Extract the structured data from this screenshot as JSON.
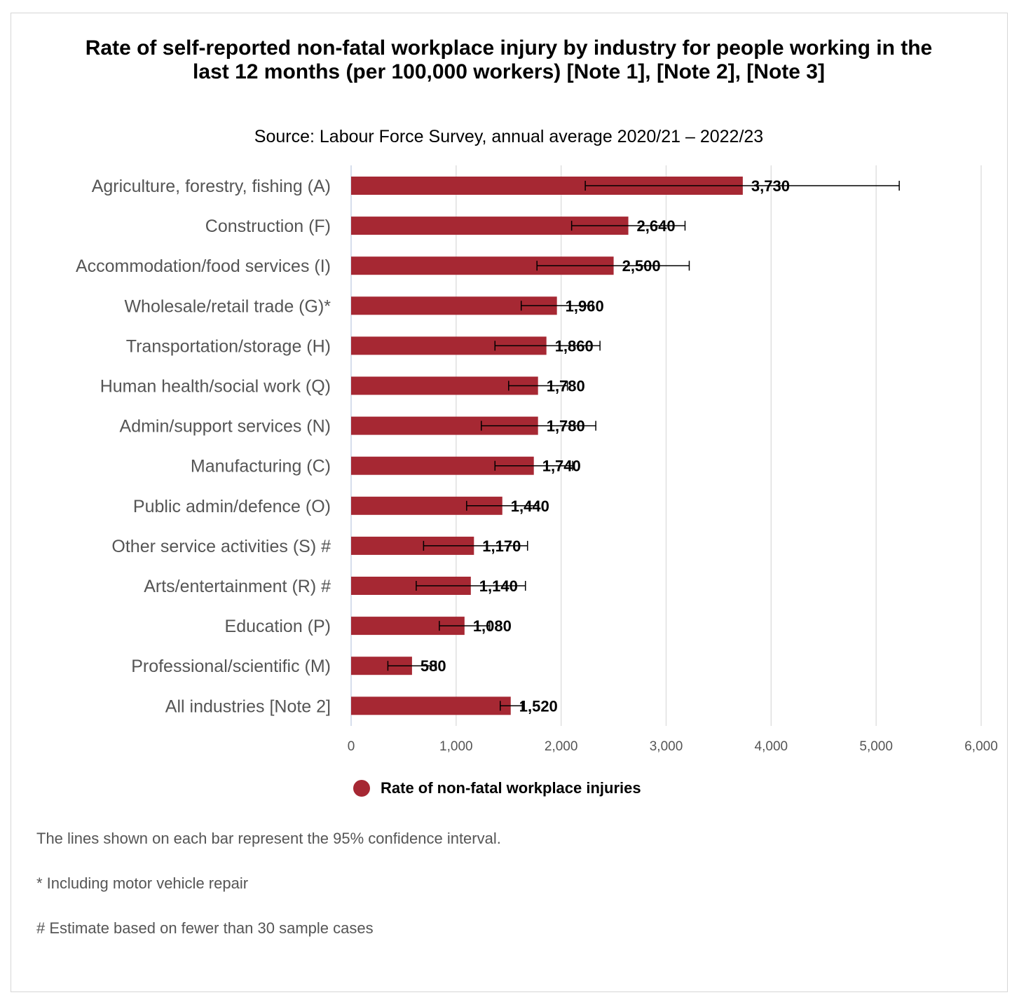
{
  "chart_data": {
    "type": "bar",
    "orientation": "horizontal",
    "title": "Rate of self-reported non-fatal workplace injury by industry for people working in the last 12 months (per 100,000 workers) [Note 1], [Note 2], [Note 3]",
    "subtitle": "Source: Labour Force Survey, annual average 2020/21 – 2022/23",
    "categories": [
      "Agriculture, forestry, fishing (A)",
      "Construction (F)",
      "Accommodation/food services (I)",
      "Wholesale/retail trade (G)*",
      "Transportation/storage (H)",
      "Human health/social work (Q)",
      "Admin/support services (N)",
      "Manufacturing (C)",
      "Public admin/defence (O)",
      "Other service activities (S) #",
      "Arts/entertainment (R) #",
      "Education (P)",
      "Professional/scientific (M)",
      "All industries [Note 2]"
    ],
    "series": [
      {
        "name": "Rate of non-fatal workplace injuries",
        "color": "#a62833",
        "values": [
          3730,
          2640,
          2500,
          1960,
          1860,
          1780,
          1780,
          1740,
          1440,
          1170,
          1140,
          1080,
          580,
          1520
        ],
        "data_labels": [
          "3,730",
          "2,640",
          "2,500",
          "1,960",
          "1,860",
          "1,780",
          "1,780",
          "1,740",
          "1,440",
          "1,170",
          "1,140",
          "1,080",
          "580",
          "1,520"
        ],
        "ci_lower": [
          2230,
          2100,
          1770,
          1620,
          1370,
          1500,
          1240,
          1370,
          1100,
          690,
          620,
          840,
          350,
          1420
        ],
        "ci_upper": [
          5220,
          3180,
          3220,
          2300,
          2370,
          2060,
          2330,
          2110,
          1780,
          1680,
          1660,
          1320,
          810,
          1630
        ]
      }
    ],
    "x_ticks": [
      "0",
      "1,000",
      "2,000",
      "3,000",
      "4,000",
      "5,000",
      "6,000"
    ],
    "xlim": [
      0,
      6000
    ],
    "xlabel": "",
    "ylabel": "",
    "grid": "vertical",
    "legend_position": "bottom",
    "legend_label": "Rate of non-fatal workplace injuries",
    "notes": [
      "The lines shown on each bar represent the 95% confidence interval.",
      "* Including motor vehicle repair",
      "# Estimate based on fewer than 30 sample cases"
    ]
  }
}
